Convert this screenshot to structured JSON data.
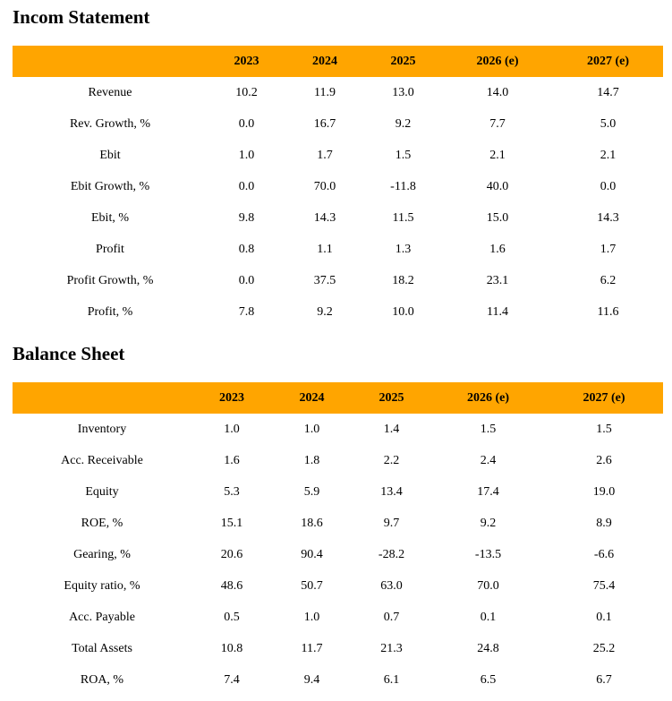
{
  "income": {
    "title": "Incom Statement",
    "headers": [
      "",
      "2023",
      "2024",
      "2025",
      "2026 (e)",
      "2027 (e)"
    ],
    "rows": [
      [
        "Revenue",
        "10.2",
        "11.9",
        "13.0",
        "14.0",
        "14.7"
      ],
      [
        "Rev. Growth, %",
        "0.0",
        "16.7",
        "9.2",
        "7.7",
        "5.0"
      ],
      [
        "Ebit",
        "1.0",
        "1.7",
        "1.5",
        "2.1",
        "2.1"
      ],
      [
        "Ebit Growth, %",
        "0.0",
        "70.0",
        "-11.8",
        "40.0",
        "0.0"
      ],
      [
        "Ebit, %",
        "9.8",
        "14.3",
        "11.5",
        "15.0",
        "14.3"
      ],
      [
        "Profit",
        "0.8",
        "1.1",
        "1.3",
        "1.6",
        "1.7"
      ],
      [
        "Profit Growth, %",
        "0.0",
        "37.5",
        "18.2",
        "23.1",
        "6.2"
      ],
      [
        "Profit, %",
        "7.8",
        "9.2",
        "10.0",
        "11.4",
        "11.6"
      ]
    ]
  },
  "balance": {
    "title": "Balance Sheet",
    "headers": [
      "",
      "2023",
      "2024",
      "2025",
      "2026 (e)",
      "2027 (e)"
    ],
    "rows": [
      [
        "Inventory",
        "1.0",
        "1.0",
        "1.4",
        "1.5",
        "1.5"
      ],
      [
        "Acc. Receivable",
        "1.6",
        "1.8",
        "2.2",
        "2.4",
        "2.6"
      ],
      [
        "Equity",
        "5.3",
        "5.9",
        "13.4",
        "17.4",
        "19.0"
      ],
      [
        "ROE, %",
        "15.1",
        "18.6",
        "9.7",
        "9.2",
        "8.9"
      ],
      [
        "Gearing, %",
        "20.6",
        "90.4",
        "-28.2",
        "-13.5",
        "-6.6"
      ],
      [
        "Equity ratio, %",
        "48.6",
        "50.7",
        "63.0",
        "70.0",
        "75.4"
      ],
      [
        "Acc. Payable",
        "0.5",
        "1.0",
        "0.7",
        "0.1",
        "0.1"
      ],
      [
        "Total Assets",
        "10.8",
        "11.7",
        "21.3",
        "24.8",
        "25.2"
      ],
      [
        "ROA, %",
        "7.4",
        "9.4",
        "6.1",
        "6.5",
        "6.7"
      ]
    ]
  }
}
